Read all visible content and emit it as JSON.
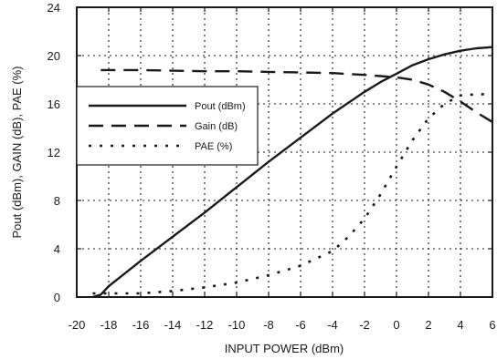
{
  "chart_data": {
    "type": "line",
    "xlabel": "INPUT POWER (dBm)",
    "ylabel": "Pout (dBm), GAIN (dB), PAE (%)",
    "xlim": [
      -20,
      6
    ],
    "ylim": [
      0,
      24
    ],
    "x_ticks": [
      "-20",
      "-18",
      "-16",
      "-14",
      "-12",
      "-10",
      "-8",
      "-6",
      "-4",
      "-2",
      "0",
      "2",
      "4",
      "6"
    ],
    "y_ticks": [
      "0",
      "4",
      "8",
      "12",
      "16",
      "20",
      "24"
    ],
    "grid": true,
    "legend_position": "center-left",
    "colors": {
      "line": "#1a1a1a",
      "grid": "#1a1a1a",
      "background": "#ffffff"
    },
    "series": [
      {
        "name": "Pout (dBm)",
        "style": "solid",
        "points": [
          [
            -19,
            0
          ],
          [
            -18.5,
            0.2
          ],
          [
            -18,
            0.9
          ],
          [
            -16,
            3.0
          ],
          [
            -14,
            5.0
          ],
          [
            -12,
            7.0
          ],
          [
            -10,
            9.1
          ],
          [
            -8,
            11.2
          ],
          [
            -6,
            13.2
          ],
          [
            -4,
            15.2
          ],
          [
            -2,
            17.0
          ],
          [
            -1,
            17.8
          ],
          [
            0,
            18.5
          ],
          [
            1,
            19.2
          ],
          [
            2,
            19.7
          ],
          [
            3,
            20.1
          ],
          [
            4,
            20.4
          ],
          [
            5,
            20.6
          ],
          [
            6,
            20.7
          ]
        ]
      },
      {
        "name": "Gain (dB)",
        "style": "dashed",
        "points": [
          [
            -18.5,
            18.8
          ],
          [
            -16,
            18.8
          ],
          [
            -14,
            18.75
          ],
          [
            -12,
            18.7
          ],
          [
            -10,
            18.7
          ],
          [
            -8,
            18.65
          ],
          [
            -6,
            18.6
          ],
          [
            -4,
            18.55
          ],
          [
            -2,
            18.4
          ],
          [
            -1,
            18.3
          ],
          [
            0,
            18.2
          ],
          [
            1,
            18.0
          ],
          [
            2,
            17.6
          ],
          [
            3,
            17.0
          ],
          [
            4,
            16.2
          ],
          [
            5,
            15.3
          ],
          [
            6,
            14.5
          ]
        ]
      },
      {
        "name": "PAE (%)",
        "style": "dotted",
        "points": [
          [
            -19,
            0.3
          ],
          [
            -18,
            0.3
          ],
          [
            -16,
            0.3
          ],
          [
            -14,
            0.5
          ],
          [
            -12,
            0.8
          ],
          [
            -10,
            1.2
          ],
          [
            -8,
            1.8
          ],
          [
            -6,
            2.6
          ],
          [
            -4,
            3.8
          ],
          [
            -3,
            5.0
          ],
          [
            -2,
            6.5
          ],
          [
            -1,
            8.5
          ],
          [
            0,
            10.8
          ],
          [
            1,
            13.0
          ],
          [
            2,
            14.8
          ],
          [
            3,
            16.0
          ],
          [
            4,
            16.7
          ],
          [
            5,
            16.8
          ],
          [
            6,
            16.8
          ]
        ]
      }
    ]
  }
}
